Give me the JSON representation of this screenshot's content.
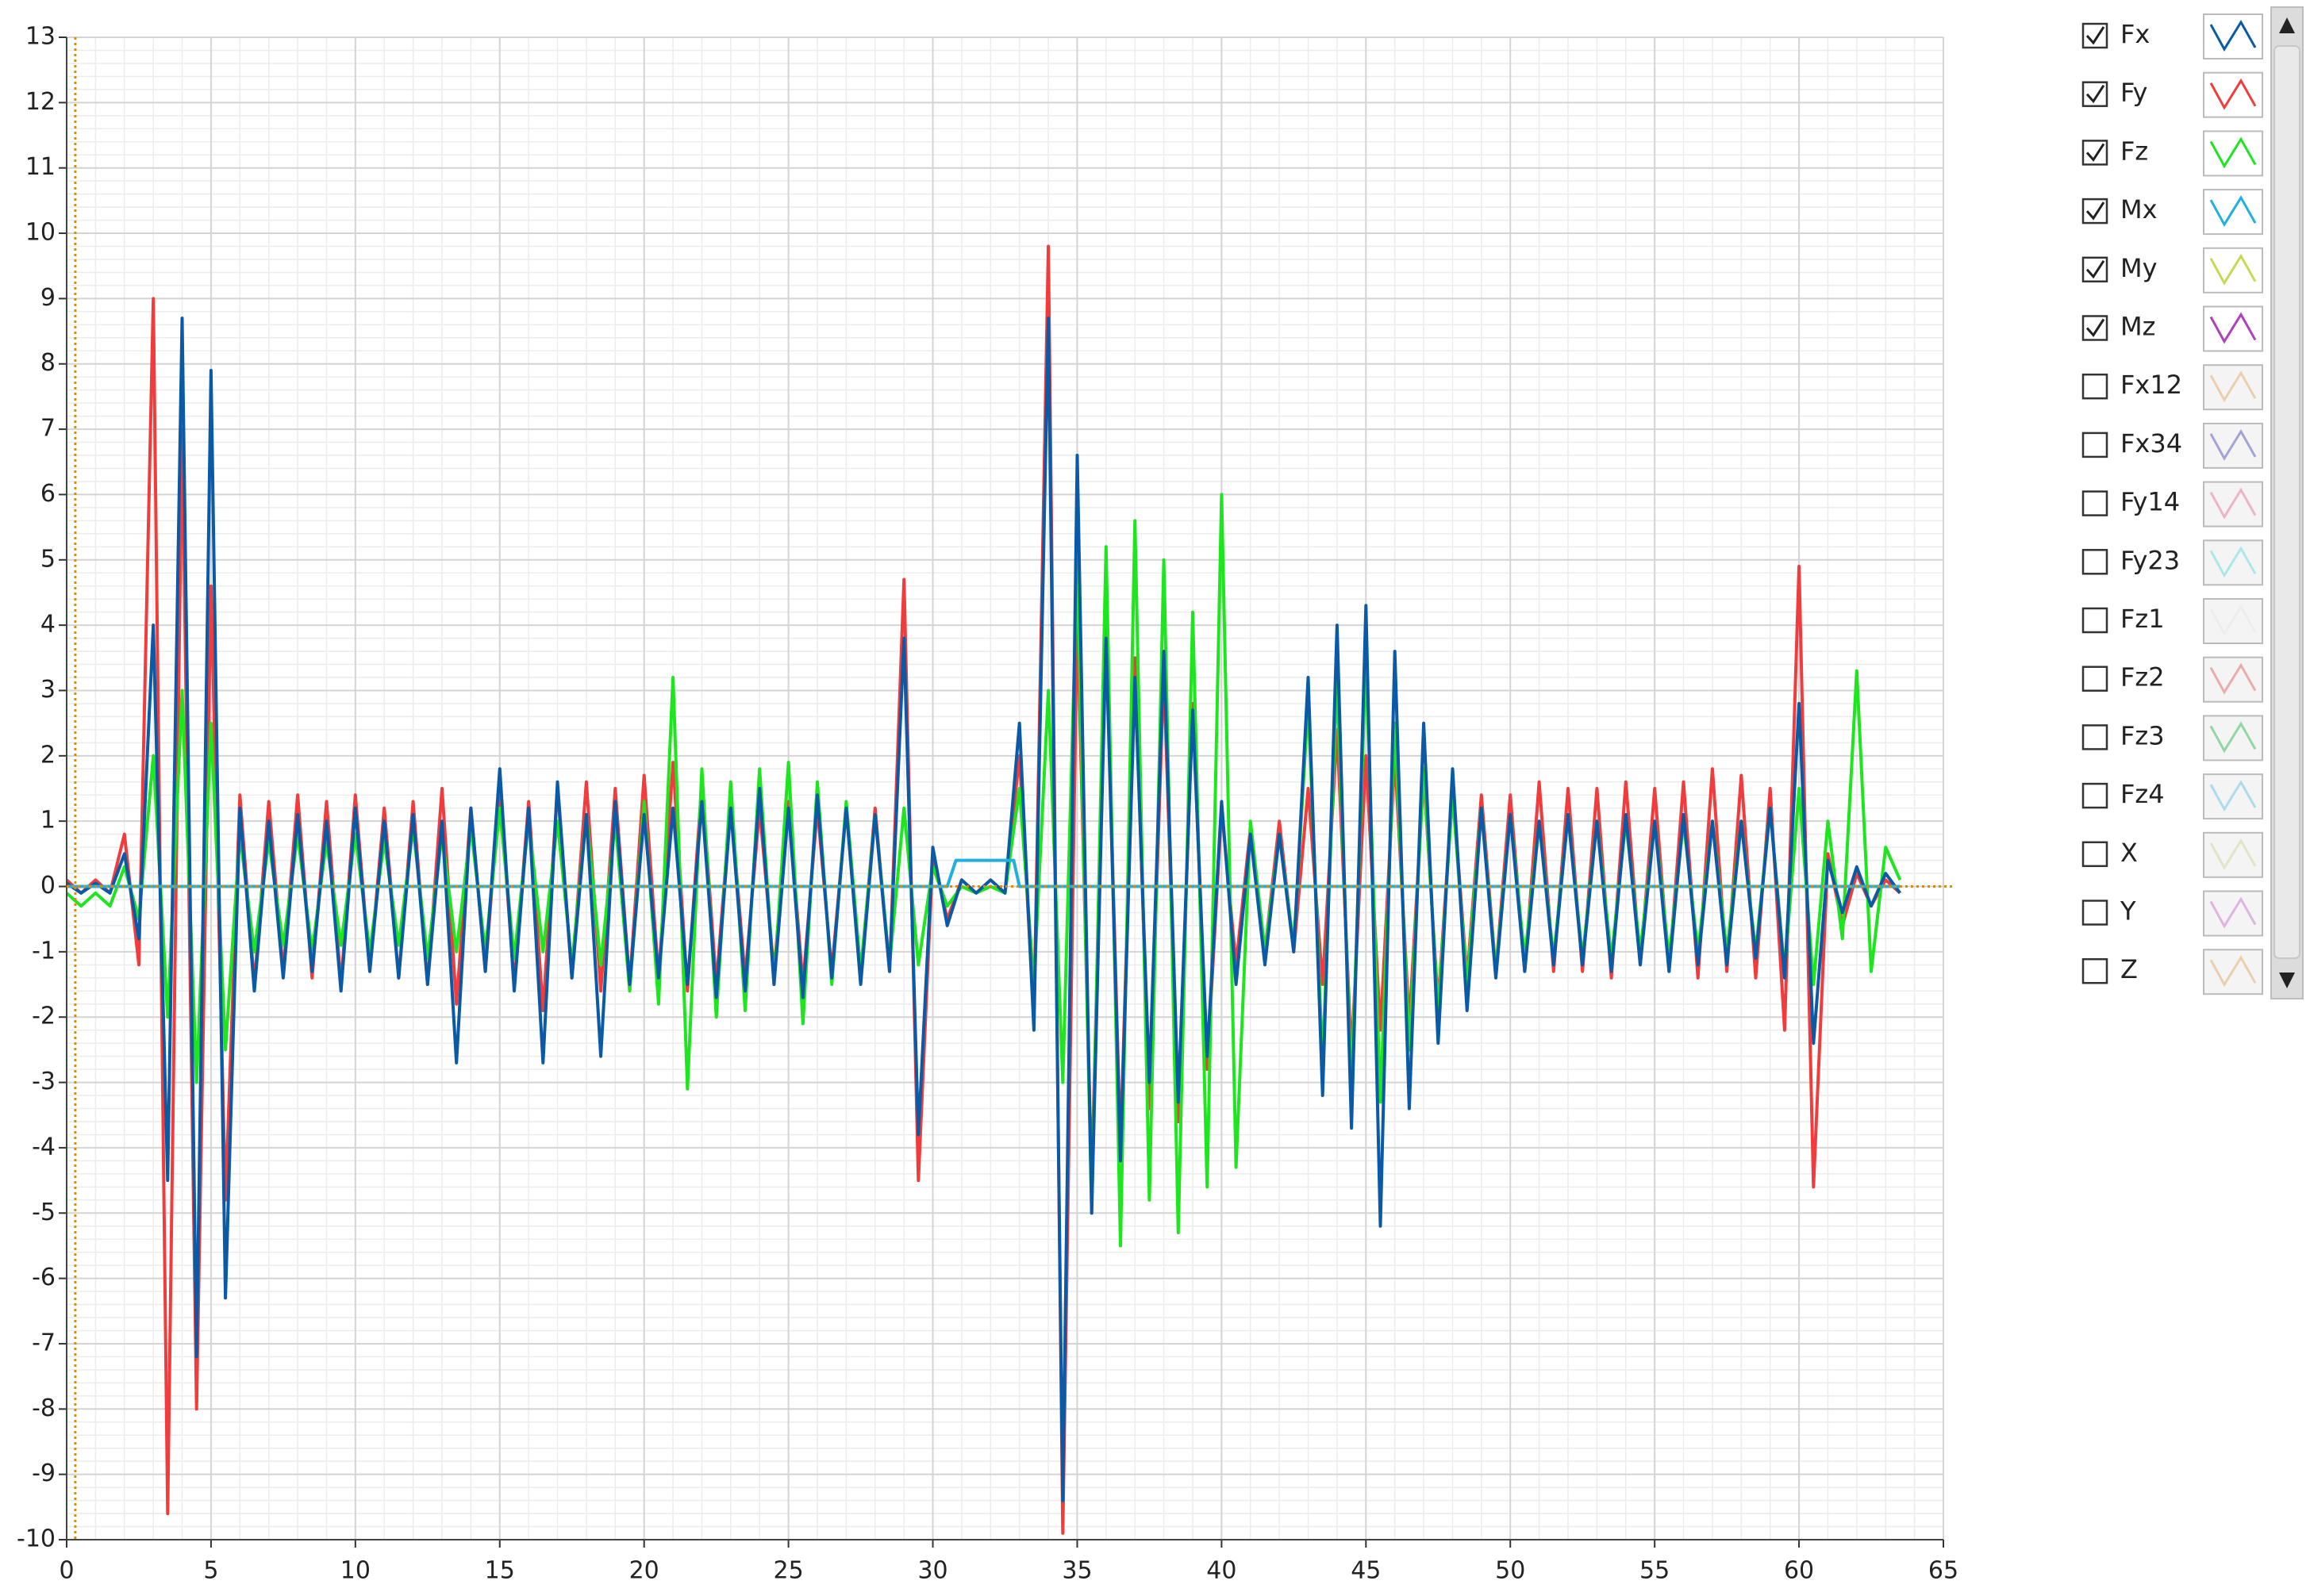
{
  "chart_data": {
    "type": "line",
    "xlim": [
      0,
      65
    ],
    "xticks": [
      0,
      5,
      10,
      15,
      20,
      25,
      30,
      35,
      40,
      45,
      50,
      55,
      60,
      65
    ],
    "ylim": [
      -10,
      13
    ],
    "yticks": [
      -10,
      -9,
      -8,
      -7,
      -6,
      -5,
      -4,
      -3,
      -2,
      -1,
      0,
      1,
      2,
      3,
      4,
      5,
      6,
      7,
      8,
      9,
      10,
      11,
      12,
      13
    ],
    "grid": true,
    "minor_grid": true,
    "cursor": {
      "x": 0.3,
      "y": 0,
      "color": "#e08a00"
    },
    "x": [
      0,
      0.5,
      1,
      1.5,
      2,
      2.5,
      3,
      3.5,
      4,
      4.5,
      5,
      5.5,
      6,
      6.5,
      7,
      7.5,
      8,
      8.5,
      9,
      9.5,
      10,
      10.5,
      11,
      11.5,
      12,
      12.5,
      13,
      13.5,
      14,
      14.5,
      15,
      15.5,
      16,
      16.5,
      17,
      17.5,
      18,
      18.5,
      19,
      19.5,
      20,
      20.5,
      21,
      21.5,
      22,
      22.5,
      23,
      23.5,
      24,
      24.5,
      25,
      25.5,
      26,
      26.5,
      27,
      27.5,
      28,
      28.5,
      29,
      29.5,
      30,
      30.5,
      31,
      31.5,
      32,
      32.5,
      33,
      33.5,
      34,
      34.5,
      35,
      35.5,
      36,
      36.5,
      37,
      37.5,
      38,
      38.5,
      39,
      39.5,
      40,
      40.5,
      41,
      41.5,
      42,
      42.5,
      43,
      43.5,
      44,
      44.5,
      45,
      45.5,
      46,
      46.5,
      47,
      47.5,
      48,
      48.5,
      49,
      49.5,
      50,
      50.5,
      51,
      51.5,
      52,
      52.5,
      53,
      53.5,
      54,
      54.5,
      55,
      55.5,
      56,
      56.5,
      57,
      57.5,
      58,
      58.5,
      59,
      59.5,
      60,
      60.5,
      61,
      61.5,
      62,
      62.5,
      63,
      63.5
    ],
    "series": [
      {
        "name": "Fx",
        "checked": true,
        "color": "#0a5aa5",
        "values": [
          0.05,
          -0.1,
          0.05,
          -0.1,
          0.5,
          -0.8,
          4,
          -4.5,
          8.7,
          -7.2,
          7.9,
          -6.3,
          1.2,
          -1.6,
          1,
          -1.4,
          1.1,
          -1.3,
          1,
          -1.6,
          1.2,
          -1.3,
          1,
          -1.4,
          1.1,
          -1.5,
          1,
          -2.7,
          1.2,
          -1.3,
          1.8,
          -1.6,
          1.2,
          -2.7,
          1.6,
          -1.4,
          1.1,
          -2.6,
          1.3,
          -1.5,
          1.1,
          -1.4,
          1.2,
          -1.5,
          1.3,
          -1.7,
          1.2,
          -1.6,
          1.5,
          -1.5,
          1.2,
          -1.7,
          1.4,
          -1.4,
          1.2,
          -1.5,
          1.1,
          -1.3,
          3.8,
          -3.8,
          0.6,
          -0.6,
          0.1,
          -0.1,
          0.1,
          -0.1,
          2.5,
          -2.2,
          8.7,
          -9.4,
          6.6,
          -5,
          3.8,
          -4.2,
          3.2,
          -3,
          3.6,
          -3.3,
          2.7,
          -2.6,
          1.3,
          -1.5,
          0.8,
          -1.2,
          0.8,
          -1,
          3.2,
          -3.2,
          4,
          -3.7,
          4.3,
          -5.2,
          3.6,
          -3.4,
          2.5,
          -2.4,
          1.8,
          -1.9,
          1.2,
          -1.4,
          1.1,
          -1.3,
          1,
          -1.2,
          1.1,
          -1.2,
          1,
          -1.3,
          1.1,
          -1.2,
          1,
          -1.3,
          1.1,
          -1.2,
          1,
          -1.2,
          1,
          -1.1,
          1.2,
          -1.4,
          2.8,
          -2.4,
          0.4,
          -0.4,
          0.3,
          -0.3,
          0.2,
          -0.1
        ]
      },
      {
        "name": "Fy",
        "checked": true,
        "color": "#f03c3c",
        "values": [
          0.1,
          -0.1,
          0.1,
          -0.1,
          0.8,
          -1.2,
          9,
          -9.6,
          7,
          -8,
          4.6,
          -4.8,
          1.4,
          -1.5,
          1.3,
          -1.3,
          1.4,
          -1.4,
          1.3,
          -1.5,
          1.4,
          -1.3,
          1.2,
          -1.4,
          1.3,
          -1.5,
          1.5,
          -1.8,
          1.2,
          -1.3,
          1.5,
          -1.5,
          1.3,
          -1.9,
          1.5,
          -1.4,
          1.6,
          -1.6,
          1.5,
          -1.5,
          1.7,
          -1.4,
          1.9,
          -1.6,
          1.6,
          -1.5,
          1.3,
          -1.4,
          1.2,
          -1.3,
          1.3,
          -1.5,
          1.2,
          -1.3,
          1.2,
          -1.4,
          1.2,
          -1.3,
          4.7,
          -4.5,
          0.5,
          -0.5,
          0.1,
          -0.1,
          0.1,
          -0.1,
          2,
          -2,
          9.8,
          -9.9,
          4.2,
          -4.5,
          4,
          -4,
          3.5,
          -3.4,
          3.3,
          -3.6,
          2.8,
          -2.8,
          1.2,
          -1.2,
          0.9,
          -1,
          1,
          -1,
          1.5,
          -1.5,
          2.4,
          -2.6,
          2,
          -2.2,
          2,
          -2.1,
          1.7,
          -1.8,
          1.5,
          -1.4,
          1.4,
          -1.3,
          1.4,
          -1.3,
          1.6,
          -1.3,
          1.5,
          -1.3,
          1.5,
          -1.4,
          1.6,
          -1.2,
          1.5,
          -1.3,
          1.6,
          -1.4,
          1.8,
          -1.3,
          1.7,
          -1.4,
          1.5,
          -2.2,
          4.9,
          -4.6,
          0.5,
          -0.6,
          0.2,
          -0.3,
          0.1,
          -0.1
        ]
      },
      {
        "name": "Fz",
        "checked": true,
        "color": "#1ee61e",
        "values": [
          -0.1,
          -0.3,
          -0.1,
          -0.3,
          0.3,
          -0.5,
          2,
          -2,
          3,
          -3,
          2.5,
          -2.5,
          0.8,
          -1,
          0.7,
          -0.9,
          0.8,
          -1,
          0.7,
          -0.9,
          0.8,
          -1,
          0.7,
          -0.9,
          0.9,
          -1.1,
          0.8,
          -1,
          0.9,
          -1,
          1.2,
          -1.1,
          1,
          -1,
          1,
          -1.2,
          1.1,
          -1.2,
          1,
          -1.6,
          1.3,
          -1.8,
          3.2,
          -3.1,
          1.8,
          -2,
          1.6,
          -1.9,
          1.8,
          -1.5,
          1.9,
          -2.1,
          1.6,
          -1.5,
          1.3,
          -1.3,
          1.1,
          -1.2,
          1.2,
          -1.2,
          0.3,
          -0.3,
          0,
          -0.1,
          0,
          -0.1,
          1.5,
          -1.5,
          3,
          -3,
          5,
          -5,
          5.2,
          -5.5,
          5.6,
          -4.8,
          5,
          -5.3,
          4.2,
          -4.6,
          6,
          -4.3,
          1,
          -1,
          0.8,
          -0.9,
          2.8,
          -2.7,
          3.2,
          -3.1,
          3.5,
          -3.3,
          2.5,
          -2.5,
          1.8,
          -1.9,
          1.4,
          -1.5,
          1.2,
          -1.3,
          1.1,
          -1.1,
          1,
          -1.1,
          1.1,
          -1.1,
          1,
          -1.1,
          1,
          -1,
          1,
          -1.1,
          1,
          -1,
          1,
          -1,
          1,
          -1,
          1.2,
          -1.3,
          1.5,
          -1.5,
          1,
          -0.8,
          3.3,
          -1.3,
          0.6,
          0.1
        ]
      },
      {
        "name": "Mx",
        "checked": true,
        "color": "#20b0e0",
        "x": [
          0,
          30.5,
          30.8,
          32.8,
          33,
          63.5
        ],
        "values": [
          0,
          0,
          0.4,
          0.4,
          0,
          0
        ]
      },
      {
        "name": "My",
        "checked": true,
        "color": "#c8d850"
      },
      {
        "name": "Mz",
        "checked": true,
        "color": "#b040c0"
      },
      {
        "name": "Fx12",
        "checked": false,
        "color": "#e0b070"
      },
      {
        "name": "Fx34",
        "checked": false,
        "color": "#6060c0"
      },
      {
        "name": "Fy14",
        "checked": false,
        "color": "#e880a0"
      },
      {
        "name": "Fy23",
        "checked": false,
        "color": "#70dce0"
      },
      {
        "name": "Fz1",
        "checked": false,
        "color": "#e8e8e8"
      },
      {
        "name": "Fz2",
        "checked": false,
        "color": "#e07070"
      },
      {
        "name": "Fz3",
        "checked": false,
        "color": "#40c060"
      },
      {
        "name": "Fz4",
        "checked": false,
        "color": "#70c8e0"
      },
      {
        "name": "X",
        "checked": false,
        "color": "#d0d8a0"
      },
      {
        "name": "Y",
        "checked": false,
        "color": "#d080d0"
      },
      {
        "name": "Z",
        "checked": false,
        "color": "#e0b070"
      }
    ]
  }
}
